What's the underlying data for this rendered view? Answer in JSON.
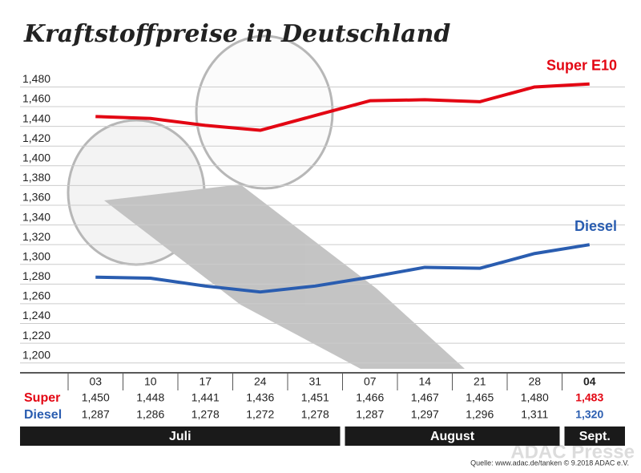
{
  "chart_data": {
    "type": "line",
    "title": "Kraftstoffpreise in Deutschland",
    "categories": [
      "03",
      "10",
      "17",
      "24",
      "31",
      "07",
      "14",
      "21",
      "28",
      "04"
    ],
    "months": [
      "Juli",
      "August",
      "Sept."
    ],
    "series": [
      {
        "name": "Super E10",
        "row_label": "Super",
        "color": "#e30613",
        "values": [
          1.45,
          1.448,
          1.441,
          1.436,
          1.451,
          1.466,
          1.467,
          1.465,
          1.48,
          1.483
        ],
        "value_labels": [
          "1,450",
          "1,448",
          "1,441",
          "1,436",
          "1,451",
          "1,466",
          "1,467",
          "1,465",
          "1,480",
          "1,483"
        ]
      },
      {
        "name": "Diesel",
        "row_label": "Diesel",
        "color": "#2a5db0",
        "values": [
          1.287,
          1.286,
          1.278,
          1.272,
          1.278,
          1.287,
          1.297,
          1.296,
          1.311,
          1.32
        ],
        "value_labels": [
          "1,287",
          "1,286",
          "1,278",
          "1,272",
          "1,278",
          "1,287",
          "1,297",
          "1,296",
          "1,311",
          "1,320"
        ]
      }
    ],
    "ylim": [
      1.19,
      1.495
    ],
    "yticks": [
      {
        "value": 1.2,
        "label": "1,200"
      },
      {
        "value": 1.22,
        "label": "1,220"
      },
      {
        "value": 1.24,
        "label": "1,240"
      },
      {
        "value": 1.26,
        "label": "1,260"
      },
      {
        "value": 1.28,
        "label": "1,280"
      },
      {
        "value": 1.3,
        "label": "1,300"
      },
      {
        "value": 1.32,
        "label": "1,320"
      },
      {
        "value": 1.34,
        "label": "1,340"
      },
      {
        "value": 1.36,
        "label": "1,360"
      },
      {
        "value": 1.38,
        "label": "1,380"
      },
      {
        "value": 1.4,
        "label": "1,400"
      },
      {
        "value": 1.42,
        "label": "1,420"
      },
      {
        "value": 1.44,
        "label": "1,440"
      },
      {
        "value": 1.46,
        "label": "1,460"
      },
      {
        "value": 1.48,
        "label": "1,480"
      }
    ],
    "grid": true,
    "source": "Quelle: www.adac.de/tanken  © 9.2018  ADAC e.V.",
    "watermark": "ADAC Presse"
  }
}
